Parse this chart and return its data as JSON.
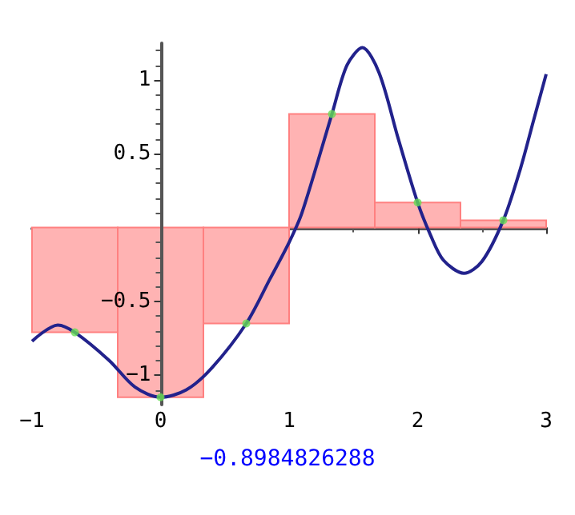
{
  "chart_data": {
    "type": "histogram",
    "bins": [
      -1,
      -0.3333,
      0.3333,
      1,
      1.6667,
      2.3333,
      3
    ],
    "values": [
      -0.71,
      -1.15,
      -0.65,
      0.77,
      0.17,
      0.05
    ],
    "color": "#ffb3b3",
    "series": [
      {
        "type": "line",
        "color": "#22228c",
        "x": [
          -1,
          -0.8,
          -0.6667,
          -0.4,
          -0.2,
          0,
          0.2,
          0.4,
          0.6667,
          0.85,
          1,
          1.1,
          1.3333,
          1.45,
          1.57,
          1.7,
          1.85,
          2,
          2.1,
          2.2,
          2.36,
          2.5,
          2.6667,
          2.8,
          2.9,
          3
        ],
        "values": [
          -0.77,
          -0.66,
          -0.71,
          -0.9,
          -1.08,
          -1.15,
          -1.1,
          -0.95,
          -0.65,
          -0.35,
          -0.1,
          0.1,
          0.77,
          1.1,
          1.22,
          1.05,
          0.6,
          0.17,
          -0.05,
          -0.22,
          -0.31,
          -0.23,
          0.05,
          0.4,
          0.72,
          1.04
        ]
      },
      {
        "type": "scatter",
        "color": "#66dd55",
        "x": [
          -0.6667,
          0,
          0.6667,
          1.3333,
          2,
          2.6667
        ],
        "values": [
          -0.71,
          -1.15,
          -0.65,
          0.77,
          0.17,
          0.05
        ]
      }
    ],
    "xlim": [
      -1,
      3
    ],
    "ylim": [
      -1.2,
      1.25
    ],
    "xticks": [
      -1,
      0,
      1,
      2,
      3
    ],
    "yticks": [
      -1,
      -0.5,
      0.5,
      1
    ],
    "annotations": [
      "−0.8984826288"
    ]
  }
}
